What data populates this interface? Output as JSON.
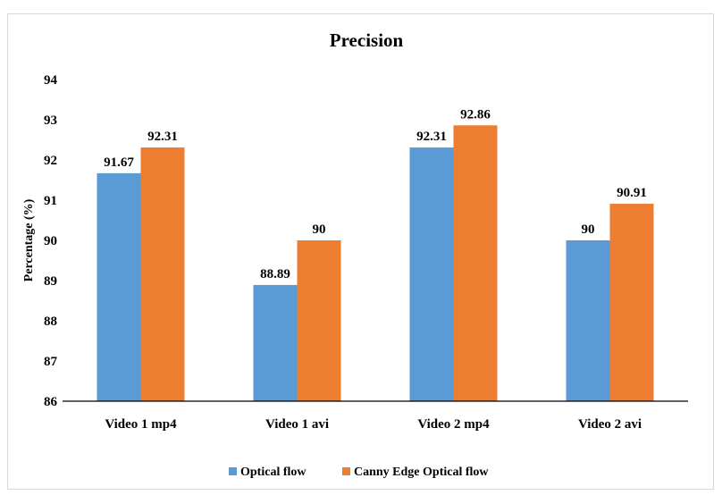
{
  "chart_data": {
    "type": "bar",
    "title": "Precision",
    "xlabel": "",
    "ylabel": "Percentage (%)",
    "ylim": [
      86,
      94
    ],
    "yticks": [
      86,
      87,
      88,
      89,
      90,
      91,
      92,
      93,
      94
    ],
    "categories": [
      "Video 1 mp4",
      "Video 1 avi",
      "Video 2 mp4",
      "Video 2 avi"
    ],
    "series": [
      {
        "name": "Optical flow",
        "color": "#5b9bd5",
        "values": [
          91.67,
          88.89,
          92.31,
          90
        ],
        "labels": [
          "91.67",
          "88.89",
          "92.31",
          "90"
        ]
      },
      {
        "name": "Canny Edge Optical flow",
        "color": "#ed7d31",
        "values": [
          92.31,
          90,
          92.86,
          90.91
        ],
        "labels": [
          "92.31",
          "90",
          "92.86",
          "90.91"
        ]
      }
    ],
    "grid": false,
    "legend_position": "bottom"
  }
}
